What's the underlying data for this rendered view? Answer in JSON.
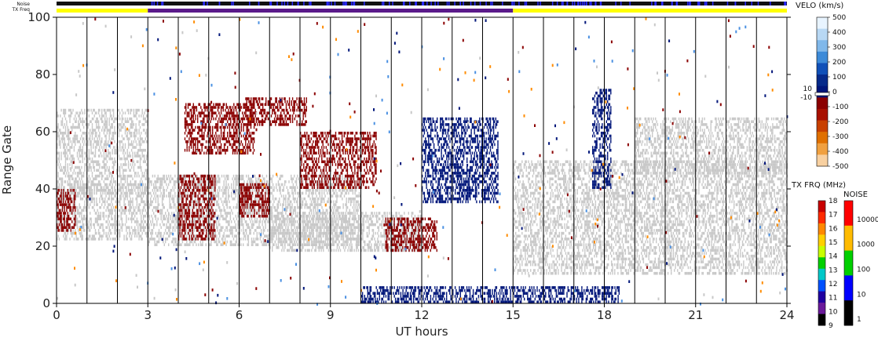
{
  "chart_data": {
    "type": "heatmap",
    "title": "",
    "xlabel": "UT hours",
    "ylabel": "Range Gate",
    "xlim": [
      0,
      24
    ],
    "ylim": [
      0,
      100
    ],
    "x_ticks": [
      "0",
      "3",
      "6",
      "9",
      "12",
      "15",
      "18",
      "21",
      "24"
    ],
    "y_ticks": [
      "0",
      "20",
      "40",
      "60",
      "80",
      "100"
    ],
    "top_bars": {
      "noise_label": "Noise",
      "txfreq_label": "TX Freq",
      "txfreq_segments": [
        {
          "start": 0,
          "end": 3,
          "color": "#ffff00"
        },
        {
          "start": 3,
          "end": 15,
          "color": "#5a1a8a"
        },
        {
          "start": 15,
          "end": 24,
          "color": "#ffff00"
        }
      ]
    },
    "velocity_colorbar": {
      "title": "VELO (km/s)",
      "ticks": [
        "500",
        "400",
        "300",
        "200",
        "100",
        "0",
        "-100",
        "-200",
        "-300",
        "-400",
        "-500"
      ],
      "side_labels": [
        "10",
        "-10"
      ]
    },
    "txfreq_colorbar": {
      "title": "TX FRQ (MHz)",
      "ticks": [
        "18",
        "17",
        "16",
        "15",
        "14",
        "13",
        "12",
        "11",
        "10",
        "9"
      ],
      "colors": [
        "#c80000",
        "#ff2a00",
        "#ff8800",
        "#ffd000",
        "#c8ff00",
        "#00d000",
        "#00c8c8",
        "#0050ff",
        "#2000a0",
        "#6a1a9a",
        "#000000"
      ]
    },
    "noise_colorbar": {
      "title": "NOISE",
      "ticks": [
        "10000",
        "1000",
        "100",
        "10",
        "1"
      ],
      "colors": [
        "#ff0000",
        "#ffbb00",
        "#00d000",
        "#0000ff",
        "#000000"
      ]
    },
    "colors": {
      "ground_scatter": "#c8c8c8",
      "negative_velocity": "#8b0000",
      "positive_velocity": "#00167a"
    },
    "regions": [
      {
        "name": "ground scatter",
        "t0": 0.0,
        "t1": 3.0,
        "g0": 38,
        "g1": 68
      },
      {
        "name": "ground scatter",
        "t0": 0.0,
        "t1": 3.0,
        "g0": 22,
        "g1": 42
      },
      {
        "name": "ground scatter",
        "t0": 3.0,
        "t1": 10.0,
        "g0": 20,
        "g1": 45
      },
      {
        "name": "ground scatter",
        "t0": 7.0,
        "t1": 12.0,
        "g0": 18,
        "g1": 32
      },
      {
        "name": "ground scatter",
        "t0": 15.0,
        "t1": 24.0,
        "g0": 10,
        "g1": 50
      },
      {
        "name": "ground scatter",
        "t0": 19.0,
        "t1": 24.0,
        "g0": 45,
        "g1": 65
      },
      {
        "name": "negative velocity",
        "t0": 0.0,
        "t1": 0.6,
        "g0": 25,
        "g1": 40
      },
      {
        "name": "negative velocity",
        "t0": 4.0,
        "t1": 5.2,
        "g0": 22,
        "g1": 45
      },
      {
        "name": "negative velocity",
        "t0": 4.2,
        "t1": 6.5,
        "g0": 52,
        "g1": 70
      },
      {
        "name": "negative velocity",
        "t0": 6.2,
        "t1": 8.2,
        "g0": 62,
        "g1": 72
      },
      {
        "name": "negative velocity",
        "t0": 6.0,
        "t1": 7.0,
        "g0": 30,
        "g1": 42
      },
      {
        "name": "negative velocity",
        "t0": 8.0,
        "t1": 10.5,
        "g0": 40,
        "g1": 60
      },
      {
        "name": "negative velocity",
        "t0": 10.8,
        "t1": 12.5,
        "g0": 18,
        "g1": 30
      },
      {
        "name": "positive velocity",
        "t0": 12.0,
        "t1": 14.5,
        "g0": 35,
        "g1": 65
      },
      {
        "name": "positive velocity",
        "t0": 10.0,
        "t1": 18.5,
        "g0": 0,
        "g1": 6
      },
      {
        "name": "positive velocity",
        "t0": 17.6,
        "t1": 18.2,
        "g0": 40,
        "g1": 75
      }
    ]
  }
}
